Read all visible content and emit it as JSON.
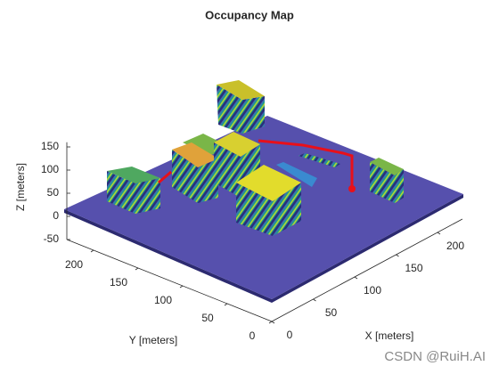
{
  "chart_data": {
    "type": "occupancy3d",
    "title": "Occupancy Map",
    "xlabel": "X [meters]",
    "ylabel": "Y [meters]",
    "zlabel": "Z [meters]",
    "xlim": [
      0,
      230
    ],
    "ylim": [
      0,
      230
    ],
    "zlim": [
      -70,
      170
    ],
    "xticks": [
      0,
      50,
      100,
      150,
      200
    ],
    "yticks": [
      0,
      50,
      100,
      150,
      200
    ],
    "zticks": [
      -50,
      0,
      50,
      100,
      150
    ],
    "watermark": "CSDN @RuiH.AI"
  }
}
